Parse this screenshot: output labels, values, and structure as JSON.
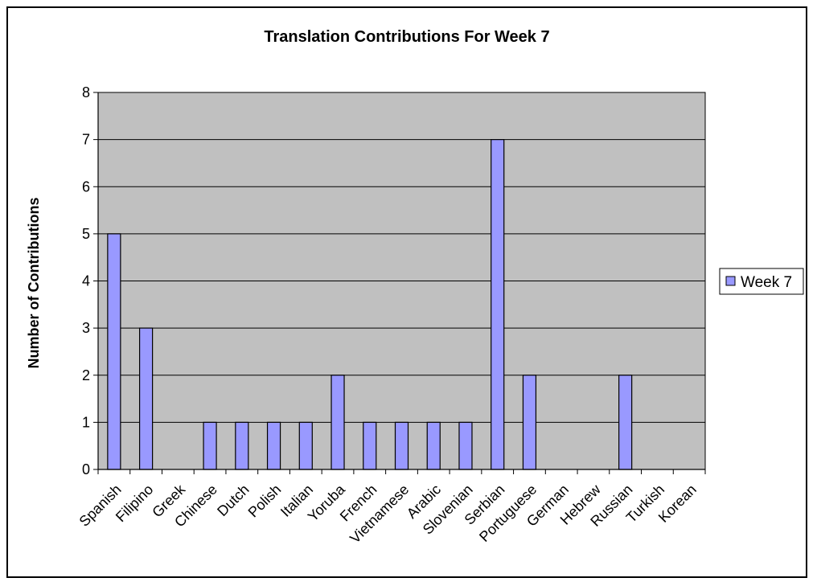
{
  "chart_data": {
    "type": "bar",
    "title": "Translation Contributions For Week 7",
    "xlabel": "",
    "ylabel": "Number of Contributions",
    "ylim": [
      0,
      8
    ],
    "yticks": [
      0,
      1,
      2,
      3,
      4,
      5,
      6,
      7,
      8
    ],
    "grid": true,
    "legend_position": "right",
    "categories": [
      "Spanish",
      "Filipino",
      "Greek",
      "Chinese",
      "Dutch",
      "Polish",
      "Italian",
      "Yoruba",
      "French",
      "Vietnamese",
      "Arabic",
      "Slovenian",
      "Serbian",
      "Portuguese",
      "German",
      "Hebrew",
      "Russian",
      "Turkish",
      "Korean"
    ],
    "series": [
      {
        "name": "Week 7",
        "values": [
          5,
          3,
          0,
          1,
          1,
          1,
          1,
          2,
          1,
          1,
          1,
          1,
          7,
          2,
          0,
          0,
          2,
          0,
          0
        ]
      }
    ]
  },
  "colors": {
    "plot_background": "#c0c0c0",
    "bar_fill": "#9999ff",
    "bar_stroke": "#000000",
    "gridline": "#000000",
    "axis": "#000000",
    "frame": "#000000"
  }
}
